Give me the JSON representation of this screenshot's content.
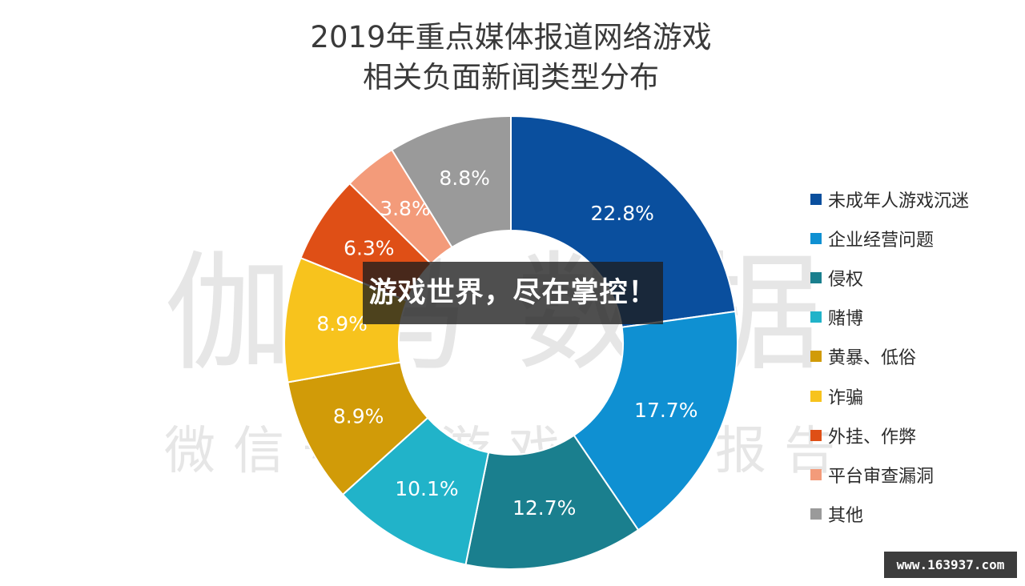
{
  "chart_data": {
    "type": "pie",
    "title_lines": [
      "2019年重点媒体报道网络游戏",
      "相关负面新闻类型分布"
    ],
    "donut": true,
    "legend_position": "right",
    "series": [
      {
        "name": "未成年人游戏沉迷",
        "value": 22.8,
        "label": "22.8%",
        "color": "#0a4f9e"
      },
      {
        "name": "企业经营问题",
        "value": 17.7,
        "label": "17.7%",
        "color": "#0f90d2"
      },
      {
        "name": "侵权",
        "value": 12.7,
        "label": "12.7%",
        "color": "#1a7f8e"
      },
      {
        "name": "赌博",
        "value": 10.1,
        "label": "10.1%",
        "color": "#21b3c9"
      },
      {
        "name": "黄暴、低俗",
        "value": 8.9,
        "label": "8.9%",
        "color": "#d19b08"
      },
      {
        "name": "诈骗",
        "value": 8.9,
        "label": "8.9%",
        "color": "#f7c31d"
      },
      {
        "name": "外挂、作弊",
        "value": 6.3,
        "label": "6.3%",
        "color": "#df4f16"
      },
      {
        "name": "平台审查漏洞",
        "value": 3.8,
        "label": "3.8%",
        "color": "#f39b7a"
      },
      {
        "name": "其他",
        "value": 8.8,
        "label": "8.8%",
        "color": "#9a9a9a"
      }
    ]
  },
  "overlay": {
    "banner_text": "游戏世界，尽在掌控！",
    "site_badge": "www.163937.com"
  },
  "watermark": {
    "large": "伽马数据",
    "small": "微信号：游戏产业报告"
  }
}
